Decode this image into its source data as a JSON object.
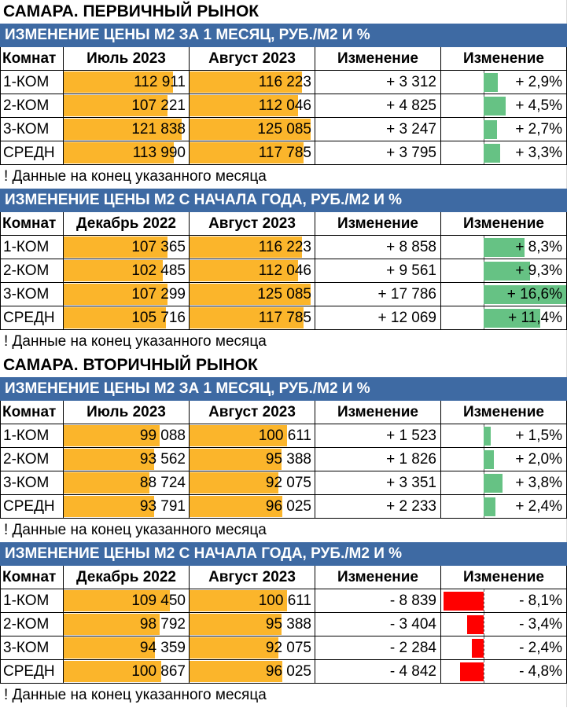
{
  "colors": {
    "band": "#3e6aa3",
    "price_bar": "#fbb52b",
    "pos_bar": "#66c284",
    "neg_bar": "#ff0000"
  },
  "sections": [
    {
      "title": "САМАРА. ПЕРВИЧНЫЙ РЫНОК",
      "tables": [
        {
          "band": "ИЗМЕНЕНИЕ ЦЕНЫ М2 ЗА 1 МЕСЯЦ, РУБ./М2 И %",
          "headers": [
            "Комнат",
            "Июль 2023",
            "Август 2023",
            "Изменение",
            "Изменение"
          ],
          "rows": [
            {
              "label": "1-КОМ",
              "v1": "112 911",
              "v2": "116 223",
              "change": "+ 3 312",
              "pct": "+ 2,9%",
              "v1_num": 112911,
              "v2_num": 116223,
              "pct_num": 2.9
            },
            {
              "label": "2-КОМ",
              "v1": "107 221",
              "v2": "112 046",
              "change": "+ 4 825",
              "pct": "+ 4,5%",
              "v1_num": 107221,
              "v2_num": 112046,
              "pct_num": 4.5
            },
            {
              "label": "3-КОМ",
              "v1": "121 838",
              "v2": "125 085",
              "change": "+ 3 247",
              "pct": "+ 2,7%",
              "v1_num": 121838,
              "v2_num": 125085,
              "pct_num": 2.7
            },
            {
              "label": "СРЕДН",
              "v1": "113 990",
              "v2": "117 785",
              "change": "+ 3 795",
              "pct": "+ 3,3%",
              "v1_num": 113990,
              "v2_num": 117785,
              "pct_num": 3.3
            }
          ],
          "note": "! Данные на конец указанного месяца"
        },
        {
          "band": "ИЗМЕНЕНИЕ ЦЕНЫ М2 С НАЧАЛА ГОДА, РУБ./М2 И %",
          "headers": [
            "Комнат",
            "Декабрь 2022",
            "Август 2023",
            "Изменение",
            "Изменение"
          ],
          "rows": [
            {
              "label": "1-КОМ",
              "v1": "107 365",
              "v2": "116 223",
              "change": "+ 8 858",
              "pct": "+ 8,3%",
              "v1_num": 107365,
              "v2_num": 116223,
              "pct_num": 8.3
            },
            {
              "label": "2-КОМ",
              "v1": "102 485",
              "v2": "112 046",
              "change": "+ 9 561",
              "pct": "+ 9,3%",
              "v1_num": 102485,
              "v2_num": 112046,
              "pct_num": 9.3
            },
            {
              "label": "3-КОМ",
              "v1": "107 299",
              "v2": "125 085",
              "change": "+ 17 786",
              "pct": "+ 16,6%",
              "v1_num": 107299,
              "v2_num": 125085,
              "pct_num": 16.6
            },
            {
              "label": "СРЕДН",
              "v1": "105 716",
              "v2": "117 785",
              "change": "+ 12 069",
              "pct": "+ 11,4%",
              "v1_num": 105716,
              "v2_num": 117785,
              "pct_num": 11.4
            }
          ],
          "note": "! Данные на конец указанного месяца"
        }
      ]
    },
    {
      "title": "САМАРА. ВТОРИЧНЫЙ РЫНОК",
      "tables": [
        {
          "band": "ИЗМЕНЕНИЕ ЦЕНЫ М2 ЗА 1 МЕСЯЦ, РУБ./М2 И %",
          "headers": [
            "Комнат",
            "Июль 2023",
            "Август 2023",
            "Изменение",
            "Изменение"
          ],
          "rows": [
            {
              "label": "1-КОМ",
              "v1": "99 088",
              "v2": "100 611",
              "change": "+ 1 523",
              "pct": "+ 1,5%",
              "v1_num": 99088,
              "v2_num": 100611,
              "pct_num": 1.5
            },
            {
              "label": "2-КОМ",
              "v1": "93 562",
              "v2": "95 388",
              "change": "+ 1 826",
              "pct": "+ 2,0%",
              "v1_num": 93562,
              "v2_num": 95388,
              "pct_num": 2.0
            },
            {
              "label": "3-КОМ",
              "v1": "88 724",
              "v2": "92 075",
              "change": "+ 3 351",
              "pct": "+ 3,8%",
              "v1_num": 88724,
              "v2_num": 92075,
              "pct_num": 3.8
            },
            {
              "label": "СРЕДН",
              "v1": "93 791",
              "v2": "96 025",
              "change": "+ 2 233",
              "pct": "+ 2,4%",
              "v1_num": 93791,
              "v2_num": 96025,
              "pct_num": 2.4
            }
          ],
          "note": "! Данные на конец указанного месяца"
        },
        {
          "band": "ИЗМЕНЕНИЕ ЦЕНЫ М2 С НАЧАЛА ГОДА, РУБ./М2 И %",
          "headers": [
            "Комнат",
            "Декабрь 2022",
            "Август 2023",
            "Изменение",
            "Изменение"
          ],
          "rows": [
            {
              "label": "1-КОМ",
              "v1": "109 450",
              "v2": "100 611",
              "change": "- 8 839",
              "pct": "- 8,1%",
              "v1_num": 109450,
              "v2_num": 100611,
              "pct_num": -8.1
            },
            {
              "label": "2-КОМ",
              "v1": "98 792",
              "v2": "95 388",
              "change": "- 3 404",
              "pct": "- 3,4%",
              "v1_num": 98792,
              "v2_num": 95388,
              "pct_num": -3.4
            },
            {
              "label": "3-КОМ",
              "v1": "94 359",
              "v2": "92 075",
              "change": "- 2 284",
              "pct": "- 2,4%",
              "v1_num": 94359,
              "v2_num": 92075,
              "pct_num": -2.4
            },
            {
              "label": "СРЕДН",
              "v1": "100 867",
              "v2": "96 025",
              "change": "- 4 842",
              "pct": "- 4,8%",
              "v1_num": 100867,
              "v2_num": 96025,
              "pct_num": -4.8
            }
          ],
          "note": "! Данные на конец указанного месяца"
        }
      ]
    }
  ]
}
